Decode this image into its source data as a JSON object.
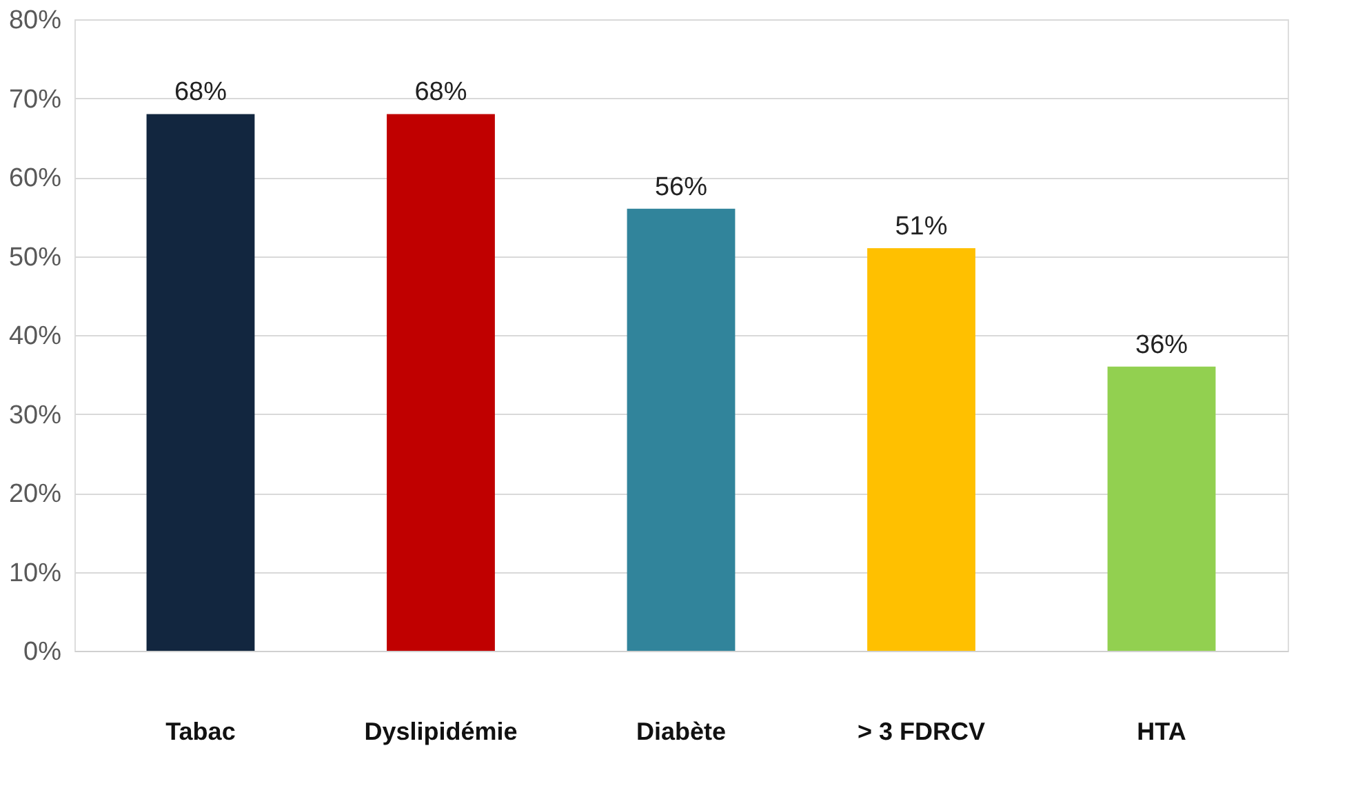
{
  "chart_data": {
    "type": "bar",
    "categories": [
      "Tabac",
      "Dyslipidémie",
      "Diabète",
      "> 3 FDRCV",
      "HTA"
    ],
    "values": [
      68,
      68,
      56,
      51,
      36
    ],
    "colors": [
      "#12263f",
      "#c00000",
      "#31849b",
      "#ffc000",
      "#92d050"
    ],
    "value_labels": [
      "68%",
      "68%",
      "56%",
      "51%",
      "36%"
    ],
    "ylim": [
      0,
      80
    ],
    "yticks": [
      {
        "value": 0,
        "label": "0%"
      },
      {
        "value": 10,
        "label": "10%"
      },
      {
        "value": 20,
        "label": "20%"
      },
      {
        "value": 30,
        "label": "30%"
      },
      {
        "value": 40,
        "label": "40%"
      },
      {
        "value": 50,
        "label": "50%"
      },
      {
        "value": 60,
        "label": "60%"
      },
      {
        "value": 70,
        "label": "70%"
      },
      {
        "value": 80,
        "label": "80%"
      }
    ],
    "grid": "y"
  }
}
